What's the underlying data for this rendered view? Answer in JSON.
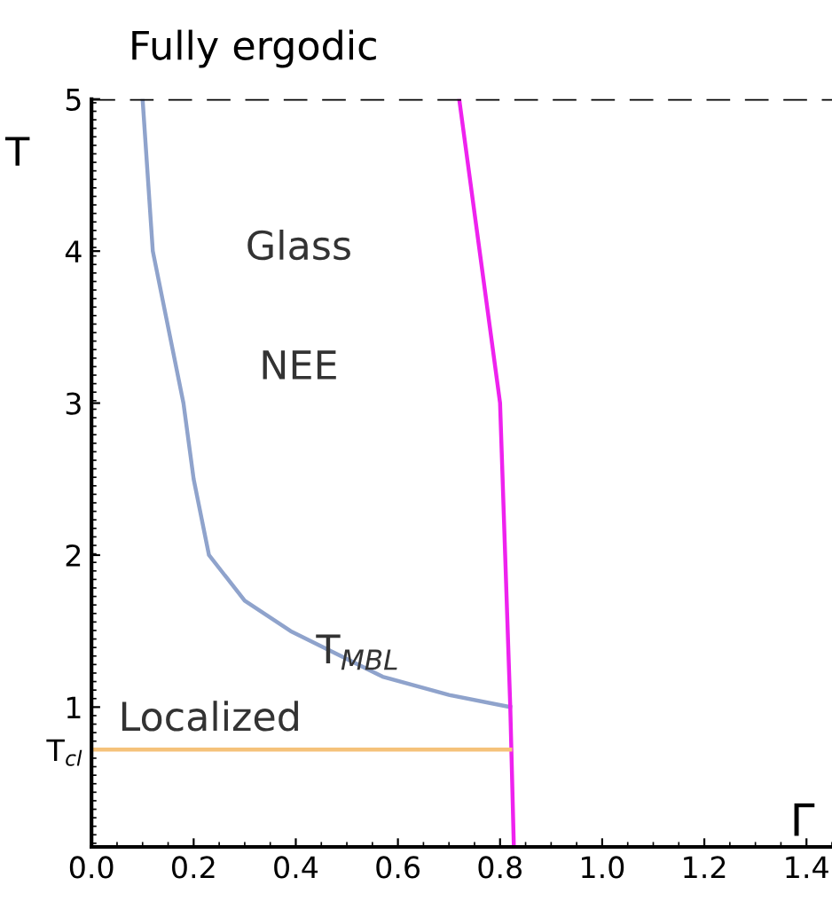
{
  "chart_data": {
    "type": "line",
    "title": "Fully ergodic",
    "xlabel": "Γ",
    "ylabel": "T",
    "xlim": [
      0,
      1.45
    ],
    "ylim": [
      0.08,
      5
    ],
    "xticks": [
      {
        "value": 0,
        "label": "0.0"
      },
      0.2,
      0.4,
      0.6,
      0.8,
      {
        "value": 1,
        "label": "1.0"
      },
      1.2,
      1.4
    ],
    "yticks": [
      {
        "value": 0.72,
        "label": "T$_{cl}$"
      },
      1,
      2,
      3,
      4,
      5
    ],
    "series": [
      {
        "color": "#8fa3cc",
        "x": [
          0.1,
          0.12,
          0.18,
          0.2,
          0.23,
          0.3,
          0.39,
          0.57,
          0.7,
          0.82
        ],
        "values": [
          5,
          4,
          3,
          2.5,
          2,
          1.7,
          1.5,
          1.2,
          1.08,
          1
        ]
      },
      {
        "color": "#ee22ee",
        "x": [
          0.72,
          0.76,
          0.8,
          0.81,
          0.82,
          0.827
        ],
        "values": [
          5,
          4,
          3,
          2,
          1,
          0.08
        ]
      },
      {
        "color": "#f5c27a",
        "x": [
          0,
          0.82
        ],
        "values": [
          0.72,
          0.72
        ]
      }
    ],
    "ref_lines": [
      {
        "axis": "y",
        "value": 5,
        "color": "#000000",
        "line_style": "dashed"
      }
    ],
    "annotations": [
      "Glass",
      "NEE",
      "T$_{MBL}$",
      "Localized"
    ],
    "grid": false,
    "legend": false,
    "marker": "none",
    "line_style": "solid"
  }
}
